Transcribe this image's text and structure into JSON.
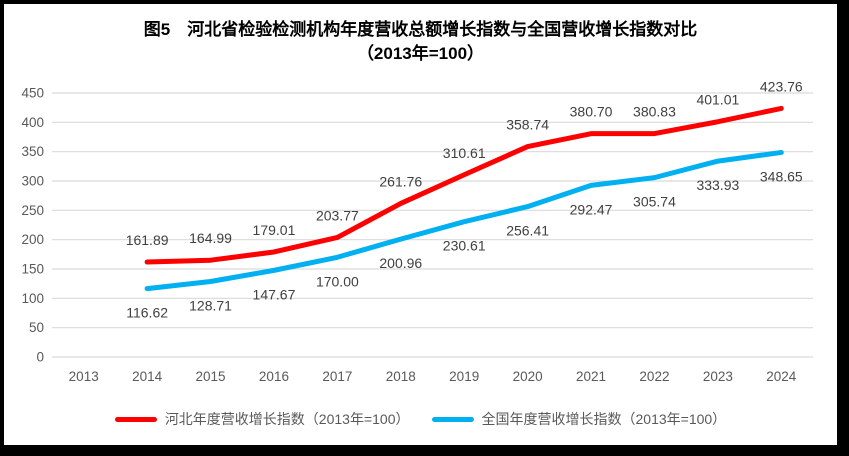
{
  "title": {
    "line1": "图5　河北省检验检测机构年度营收总额增长指数与全国营收增长指数对比",
    "line2": "（2013年=100）"
  },
  "chart_data": {
    "type": "line",
    "x": [
      "2013",
      "2014",
      "2015",
      "2016",
      "2017",
      "2018",
      "2019",
      "2020",
      "2021",
      "2022",
      "2023",
      "2024"
    ],
    "series": [
      {
        "name": "河北年度营收增长指数（2013年=100）",
        "color": "#FF0000",
        "values": [
          null,
          161.89,
          164.99,
          179.01,
          203.77,
          261.76,
          310.61,
          358.74,
          380.7,
          380.83,
          401.01,
          423.76
        ],
        "labels": [
          "",
          "161.89",
          "164.99",
          "179.01",
          "203.77",
          "261.76",
          "310.61",
          "358.74",
          "380.70",
          "380.83",
          "401.01",
          "423.76"
        ]
      },
      {
        "name": "全国年度营收增长指数（2013年=100）",
        "color": "#00B0F0",
        "values": [
          null,
          116.62,
          128.71,
          147.67,
          170.0,
          200.96,
          230.61,
          256.41,
          292.47,
          305.74,
          333.93,
          348.65
        ],
        "labels": [
          "",
          "116.62",
          "128.71",
          "147.67",
          "170.00",
          "200.96",
          "230.61",
          "256.41",
          "292.47",
          "305.74",
          "333.93",
          "348.65"
        ]
      }
    ],
    "ylim": [
      0,
      450
    ],
    "ytick_step": 50,
    "yticks": [
      "0",
      "50",
      "100",
      "150",
      "200",
      "250",
      "300",
      "350",
      "400",
      "450"
    ],
    "grid": true,
    "legend_position": "bottom",
    "colors": {
      "grid": "#D9D9D9",
      "axis_text": "#595959",
      "data_label": "#404040",
      "background": "#FFFFFF",
      "frame": "#000000"
    }
  }
}
